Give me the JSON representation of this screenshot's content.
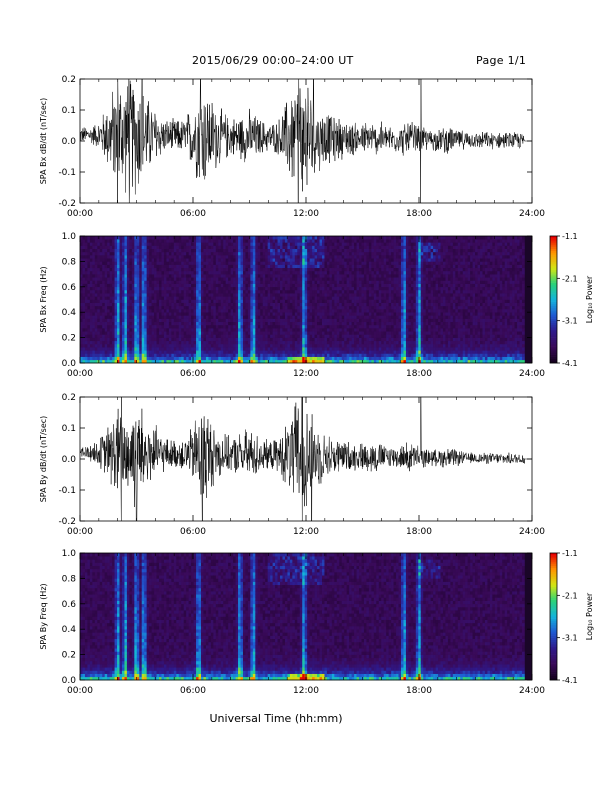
{
  "header": {
    "title": "2015/06/29  00:00–24:00 UT",
    "page": "Page 1/1"
  },
  "colors": {
    "trace": "#000000",
    "frame": "#000000",
    "background": "#ffffff",
    "spectrogram_floor": "#1a0628",
    "colormap": [
      "#14001e",
      "#3a0a5a",
      "#2e1a8c",
      "#1f5ad2",
      "#14b4dc",
      "#2ad27a",
      "#d2e614",
      "#ff9600",
      "#e60000"
    ]
  },
  "chart_data": [
    {
      "type": "line",
      "name": "SPA Bx dB/dt",
      "ylabel": "SPA Bx dB/dt (nT/sec)",
      "ylim": [
        -0.2,
        0.2
      ],
      "yticks": [
        "-0.2",
        "-0.1",
        "0.0",
        "0.1",
        "0.2"
      ],
      "xlim": [
        0,
        24
      ],
      "xticks": [
        "00:00",
        "06:00",
        "12:00",
        "18:00",
        "24:00"
      ],
      "data_end_hour": 23.6,
      "envelope": {
        "hours": [
          0,
          0.5,
          1.0,
          1.5,
          2.0,
          2.5,
          3.0,
          3.5,
          4.0,
          4.5,
          5.0,
          5.5,
          6.0,
          6.5,
          7.0,
          7.5,
          8.0,
          8.5,
          9.0,
          9.5,
          10.0,
          10.5,
          11.0,
          11.5,
          12.0,
          12.5,
          13.0,
          13.5,
          14.0,
          14.5,
          15.0,
          15.5,
          16.0,
          16.5,
          17.0,
          17.5,
          18.0,
          18.5,
          19.0,
          19.5,
          20.0,
          20.5,
          21.0,
          21.5,
          22.0,
          22.5,
          23.0,
          23.6
        ],
        "amplitude": [
          0.03,
          0.03,
          0.05,
          0.12,
          0.22,
          0.2,
          0.22,
          0.15,
          0.1,
          0.06,
          0.06,
          0.06,
          0.12,
          0.2,
          0.14,
          0.1,
          0.07,
          0.08,
          0.1,
          0.07,
          0.05,
          0.06,
          0.14,
          0.22,
          0.22,
          0.12,
          0.1,
          0.08,
          0.07,
          0.06,
          0.06,
          0.06,
          0.06,
          0.05,
          0.05,
          0.07,
          0.05,
          0.04,
          0.04,
          0.05,
          0.04,
          0.03,
          0.03,
          0.03,
          0.03,
          0.03,
          0.03,
          0.03
        ]
      },
      "spikes_hours": [
        2.0,
        2.6,
        3.3,
        6.4,
        11.6,
        12.4,
        18.1
      ]
    },
    {
      "type": "heatmap",
      "name": "SPA Bx Freq",
      "ylabel": "SPA Bx Freq (Hz)",
      "ylim": [
        0.0,
        1.0
      ],
      "yticks": [
        "0.0",
        "0.2",
        "0.4",
        "0.6",
        "0.8",
        "1.0"
      ],
      "xlim": [
        0,
        24
      ],
      "xticks": [
        "00:00",
        "06:00",
        "12:00",
        "18:00",
        "24:00"
      ],
      "data_end_hour": 23.6,
      "colorbar": {
        "label": "Log₁₀ Power",
        "range": [
          -4.1,
          -1.1
        ],
        "ticks": [
          "-1.1",
          "-2.1",
          "-3.1",
          "-4.1"
        ]
      },
      "vertical_bands_hours": [
        2.0,
        2.4,
        3.0,
        3.4,
        6.3,
        8.5,
        9.2,
        11.9,
        17.2,
        18.0
      ],
      "high_freq_patches": [
        {
          "hour_start": 10.0,
          "hour_end": 13.0,
          "freq_low": 0.75,
          "freq_high": 1.0
        },
        {
          "hour_start": 18.0,
          "hour_end": 19.2,
          "freq_low": 0.8,
          "freq_high": 0.95
        }
      ]
    },
    {
      "type": "line",
      "name": "SPA By dB/dt",
      "ylabel": "SPA By dB/dt (nT/sec)",
      "ylim": [
        -0.2,
        0.2
      ],
      "yticks": [
        "-0.2",
        "-0.1",
        "0.0",
        "0.1",
        "0.2"
      ],
      "xlim": [
        0,
        24
      ],
      "xticks": [
        "00:00",
        "06:00",
        "12:00",
        "18:00",
        "24:00"
      ],
      "data_end_hour": 23.6,
      "envelope": {
        "hours": [
          0,
          0.5,
          1.0,
          1.5,
          2.0,
          2.5,
          3.0,
          3.5,
          4.0,
          4.5,
          5.0,
          5.5,
          6.0,
          6.5,
          7.0,
          7.5,
          8.0,
          8.5,
          9.0,
          9.5,
          10.0,
          10.5,
          11.0,
          11.5,
          12.0,
          12.5,
          13.0,
          13.5,
          14.0,
          14.5,
          15.0,
          15.5,
          16.0,
          16.5,
          17.0,
          17.5,
          18.0,
          18.5,
          19.0,
          19.5,
          20.0,
          20.5,
          21.0,
          21.5,
          22.0,
          22.5,
          23.0,
          23.6
        ],
        "amplitude": [
          0.02,
          0.03,
          0.05,
          0.1,
          0.18,
          0.16,
          0.2,
          0.14,
          0.1,
          0.06,
          0.05,
          0.06,
          0.1,
          0.22,
          0.12,
          0.08,
          0.06,
          0.08,
          0.1,
          0.07,
          0.05,
          0.06,
          0.12,
          0.2,
          0.22,
          0.12,
          0.08,
          0.07,
          0.06,
          0.05,
          0.05,
          0.06,
          0.05,
          0.04,
          0.04,
          0.06,
          0.04,
          0.03,
          0.03,
          0.04,
          0.03,
          0.02,
          0.02,
          0.02,
          0.02,
          0.02,
          0.02,
          0.02
        ]
      },
      "spikes_hours": [
        2.2,
        3.0,
        6.5,
        11.8,
        12.3,
        18.1
      ]
    },
    {
      "type": "heatmap",
      "name": "SPA By Freq",
      "ylabel": "SPA By Freq (Hz)",
      "ylim": [
        0.0,
        1.0
      ],
      "yticks": [
        "0.0",
        "0.2",
        "0.4",
        "0.6",
        "0.8",
        "1.0"
      ],
      "xlim": [
        0,
        24
      ],
      "xticks": [
        "00:00",
        "06:00",
        "12:00",
        "18:00",
        "24:00"
      ],
      "data_end_hour": 23.6,
      "colorbar": {
        "label": "Log₁₀ Power",
        "range": [
          -4.1,
          -1.1
        ],
        "ticks": [
          "-1.1",
          "-2.1",
          "-3.1",
          "-4.1"
        ]
      },
      "vertical_bands_hours": [
        2.0,
        2.4,
        3.0,
        3.4,
        6.3,
        8.5,
        9.2,
        11.9,
        17.2,
        18.0
      ],
      "high_freq_patches": [
        {
          "hour_start": 10.0,
          "hour_end": 13.0,
          "freq_low": 0.75,
          "freq_high": 1.0
        },
        {
          "hour_start": 18.0,
          "hour_end": 19.2,
          "freq_low": 0.8,
          "freq_high": 0.95
        }
      ]
    }
  ],
  "xaxis_title": "Universal Time (hh:mm)"
}
